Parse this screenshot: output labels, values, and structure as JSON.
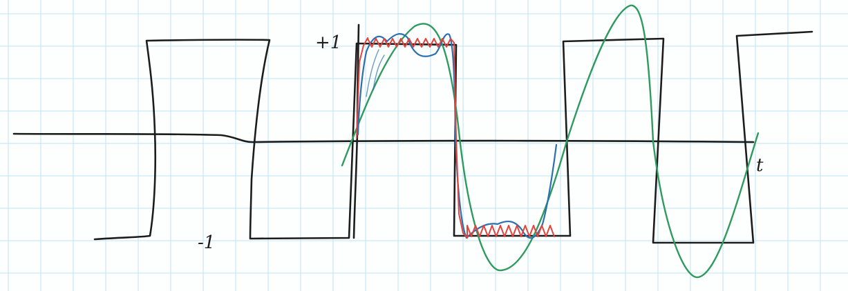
{
  "labels": {
    "plus_one": "+1",
    "minus_one": "-1",
    "t_axis": "t"
  },
  "colors": {
    "paper": "#fdfefe",
    "grid": "#bfe3f3",
    "ink": "#1c1c1c",
    "fundamental": "#2e9a5e",
    "three_term": "#2a6fb0",
    "many_term": "#e0443c"
  }
}
